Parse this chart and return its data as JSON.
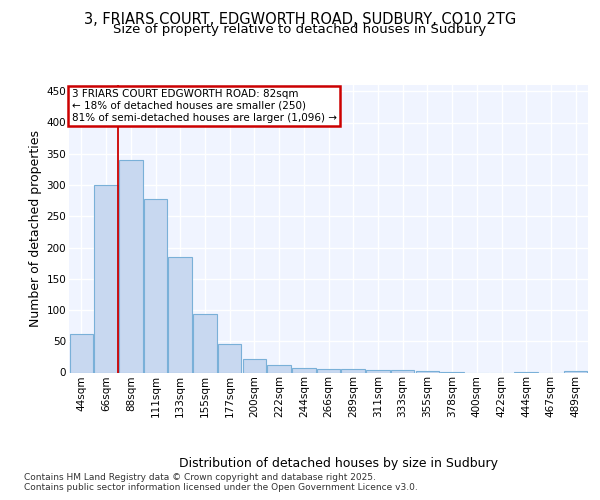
{
  "title_line1": "3, FRIARS COURT, EDGWORTH ROAD, SUDBURY, CO10 2TG",
  "title_line2": "Size of property relative to detached houses in Sudbury",
  "xlabel": "Distribution of detached houses by size in Sudbury",
  "ylabel": "Number of detached properties",
  "bar_color": "#c8d8f0",
  "bar_edge_color": "#7ab0d8",
  "highlight_bar_index": 1,
  "annotation_box_text": "3 FRIARS COURT EDGWORTH ROAD: 82sqm\n← 18% of detached houses are smaller (250)\n81% of semi-detached houses are larger (1,096) →",
  "annotation_box_color": "#ffffff",
  "annotation_box_edge_color": "#cc0000",
  "vline_x": 1.5,
  "categories": [
    "44sqm",
    "66sqm",
    "88sqm",
    "111sqm",
    "133sqm",
    "155sqm",
    "177sqm",
    "200sqm",
    "222sqm",
    "244sqm",
    "266sqm",
    "289sqm",
    "311sqm",
    "333sqm",
    "355sqm",
    "378sqm",
    "400sqm",
    "422sqm",
    "444sqm",
    "467sqm",
    "489sqm"
  ],
  "values": [
    62,
    300,
    340,
    278,
    185,
    93,
    45,
    22,
    12,
    7,
    5,
    5,
    4,
    4,
    3,
    1,
    0,
    0,
    1,
    0,
    2
  ],
  "ylim": [
    0,
    460
  ],
  "yticks": [
    0,
    50,
    100,
    150,
    200,
    250,
    300,
    350,
    400,
    450
  ],
  "footer_text": "Contains HM Land Registry data © Crown copyright and database right 2025.\nContains public sector information licensed under the Open Government Licence v3.0.",
  "background_color": "#ffffff",
  "plot_bg_color": "#f0f4ff",
  "grid_color": "#ffffff",
  "title_fontsize": 10.5,
  "subtitle_fontsize": 9.5,
  "axis_label_fontsize": 9,
  "tick_fontsize": 7.5,
  "footer_fontsize": 6.5
}
